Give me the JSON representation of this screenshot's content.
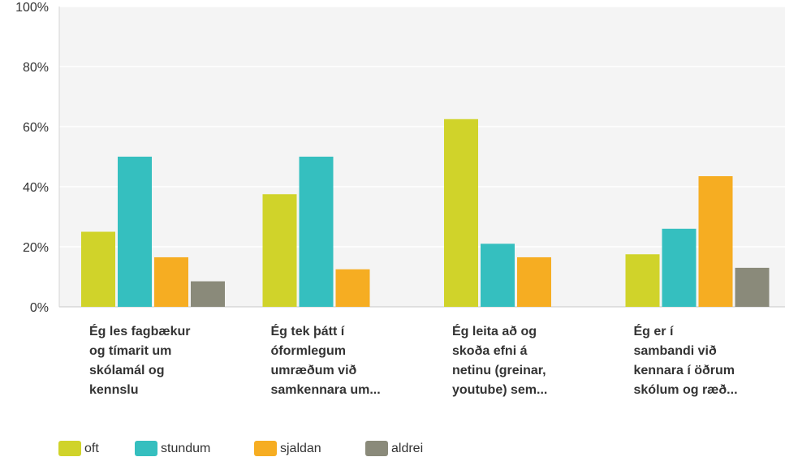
{
  "chart_data": {
    "type": "bar",
    "categories": [
      [
        "Ég les fagbækur",
        "og tímarit um",
        "skólamál og",
        "kennslu"
      ],
      [
        "Ég tek þátt í",
        "óformlegum",
        "umræðum við",
        "samkennara um..."
      ],
      [
        "Ég leita að og",
        "skoða efni á",
        "netinu (greinar,",
        "youtube) sem..."
      ],
      [
        "Ég er í",
        "sambandi við",
        "kennara í öðrum",
        "skólum og ræð..."
      ]
    ],
    "series": [
      {
        "name": "oft",
        "color": "#d0d32a",
        "values": [
          25,
          37.5,
          62.5,
          17.5
        ]
      },
      {
        "name": "stundum",
        "color": "#35bfbf",
        "values": [
          50,
          50,
          21,
          26
        ]
      },
      {
        "name": "sjaldan",
        "color": "#f6ad22",
        "values": [
          16.5,
          12.5,
          16.5,
          43.5
        ]
      },
      {
        "name": "aldrei",
        "color": "#8a8a7a",
        "values": [
          8.5,
          0,
          0,
          13
        ]
      }
    ],
    "yticks": [
      "0%",
      "20%",
      "40%",
      "60%",
      "80%",
      "100%"
    ],
    "ylim": [
      0,
      100
    ],
    "grid": true,
    "legend_position": "bottom-left",
    "title": "",
    "xlabel": "",
    "ylabel": ""
  }
}
